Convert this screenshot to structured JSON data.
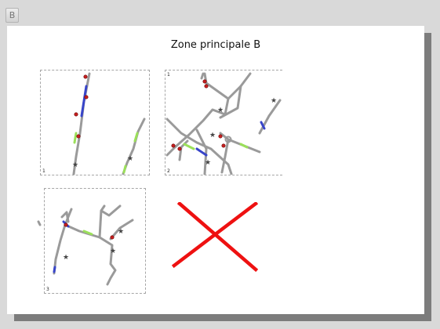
{
  "toolbar": {
    "tab_label": "B"
  },
  "page": {
    "title": "Zone principale B"
  },
  "panels": [
    {
      "number": "1"
    },
    {
      "number": "1",
      "secondary_number": "2"
    },
    {
      "number": "3"
    }
  ],
  "colors": {
    "road": "#9a9a9a",
    "highlight_blue": "#3845c9",
    "highlight_green": "#9be05a",
    "stop_marker": "#c62020",
    "cross": "#ee1111"
  },
  "icons": [
    "star-marker-icon",
    "stop-marker-icon",
    "red-cross-icon"
  ]
}
